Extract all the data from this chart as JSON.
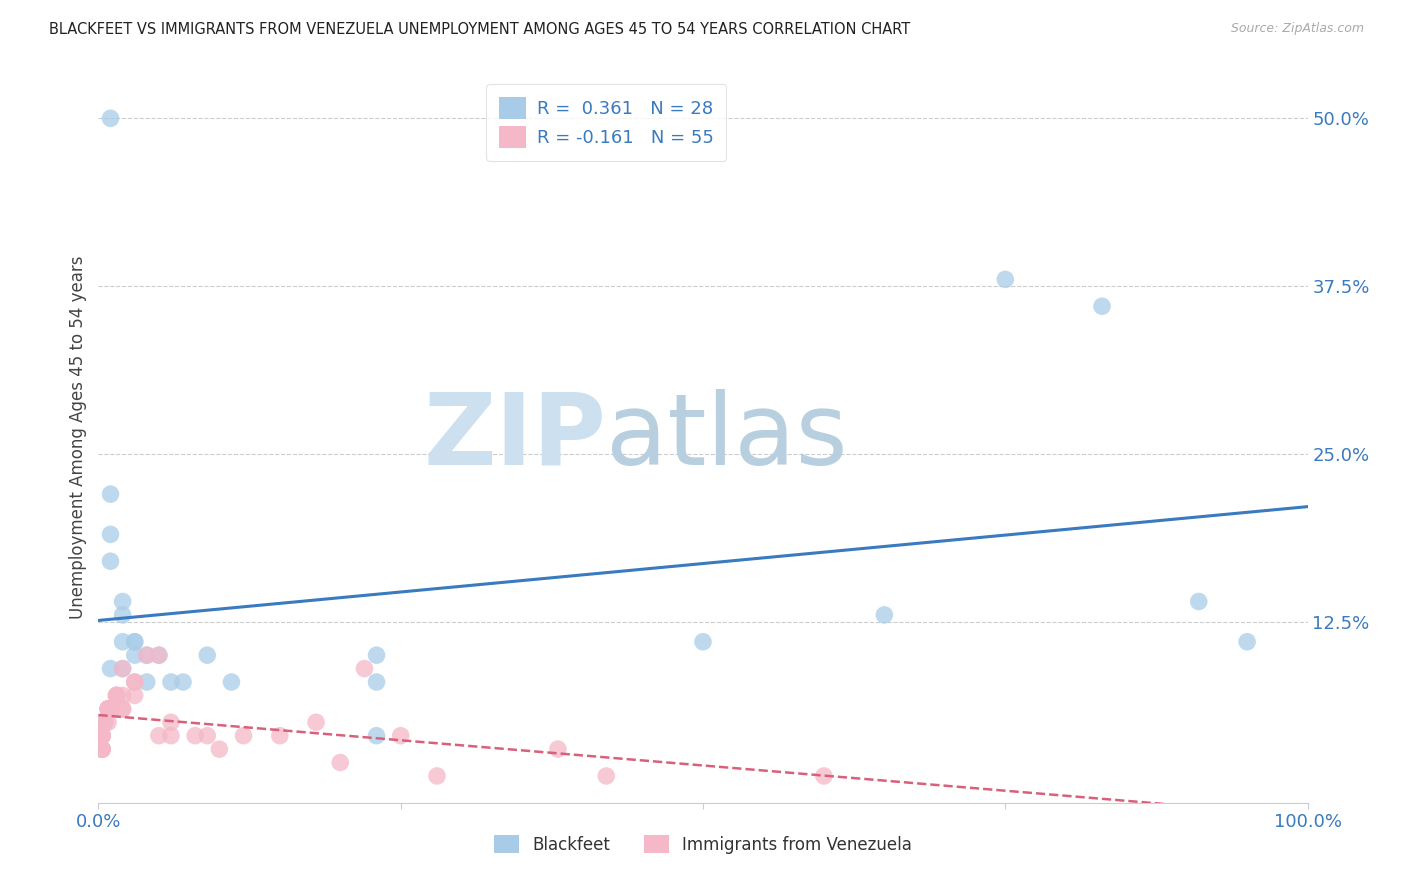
{
  "title": "BLACKFEET VS IMMIGRANTS FROM VENEZUELA UNEMPLOYMENT AMONG AGES 45 TO 54 YEARS CORRELATION CHART",
  "source": "Source: ZipAtlas.com",
  "ylabel": "Unemployment Among Ages 45 to 54 years",
  "right_yticks": [
    "50.0%",
    "37.5%",
    "25.0%",
    "12.5%"
  ],
  "right_ytick_vals": [
    0.5,
    0.375,
    0.25,
    0.125
  ],
  "xlim": [
    0.0,
    1.0
  ],
  "ylim": [
    -0.01,
    0.535
  ],
  "watermark_zip": "ZIP",
  "watermark_atlas": "atlas",
  "blue_color": "#a8cce8",
  "blue_line_color": "#3a7abf",
  "pink_color": "#f4b8c8",
  "pink_line_color": "#d9607a",
  "blue_scatter_x": [
    0.01,
    0.01,
    0.01,
    0.01,
    0.01,
    0.02,
    0.02,
    0.02,
    0.02,
    0.03,
    0.03,
    0.03,
    0.04,
    0.04,
    0.05,
    0.06,
    0.07,
    0.09,
    0.11,
    0.23,
    0.23,
    0.23,
    0.5,
    0.65,
    0.75,
    0.83,
    0.91,
    0.95
  ],
  "blue_scatter_y": [
    0.5,
    0.22,
    0.19,
    0.17,
    0.09,
    0.14,
    0.13,
    0.11,
    0.09,
    0.11,
    0.11,
    0.1,
    0.1,
    0.08,
    0.1,
    0.08,
    0.08,
    0.1,
    0.08,
    0.1,
    0.08,
    0.04,
    0.11,
    0.13,
    0.38,
    0.36,
    0.14,
    0.11
  ],
  "pink_scatter_x": [
    0.003,
    0.003,
    0.003,
    0.003,
    0.003,
    0.003,
    0.003,
    0.003,
    0.003,
    0.003,
    0.003,
    0.003,
    0.005,
    0.005,
    0.005,
    0.005,
    0.005,
    0.005,
    0.008,
    0.008,
    0.008,
    0.008,
    0.01,
    0.01,
    0.01,
    0.01,
    0.015,
    0.015,
    0.015,
    0.015,
    0.02,
    0.02,
    0.02,
    0.02,
    0.03,
    0.03,
    0.03,
    0.04,
    0.05,
    0.05,
    0.06,
    0.06,
    0.08,
    0.09,
    0.1,
    0.12,
    0.15,
    0.18,
    0.2,
    0.22,
    0.25,
    0.28,
    0.38,
    0.42,
    0.6
  ],
  "pink_scatter_y": [
    0.04,
    0.04,
    0.04,
    0.04,
    0.04,
    0.04,
    0.04,
    0.03,
    0.03,
    0.03,
    0.03,
    0.03,
    0.05,
    0.05,
    0.05,
    0.05,
    0.05,
    0.05,
    0.05,
    0.06,
    0.06,
    0.06,
    0.06,
    0.06,
    0.06,
    0.06,
    0.07,
    0.07,
    0.07,
    0.07,
    0.07,
    0.06,
    0.06,
    0.09,
    0.08,
    0.08,
    0.07,
    0.1,
    0.04,
    0.1,
    0.05,
    0.04,
    0.04,
    0.04,
    0.03,
    0.04,
    0.04,
    0.05,
    0.02,
    0.09,
    0.04,
    0.01,
    0.03,
    0.01,
    0.01
  ],
  "blue_R": 0.361,
  "pink_R": -0.161,
  "blue_N": 28,
  "pink_N": 55
}
